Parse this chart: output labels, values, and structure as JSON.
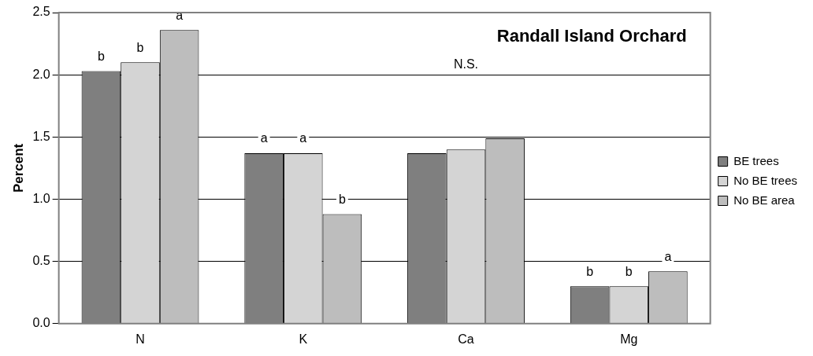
{
  "chart_data": {
    "type": "bar",
    "title": "Randall Island Orchard",
    "ylabel": "Percent",
    "categories": [
      "N",
      "K",
      "Ca",
      "Mg"
    ],
    "series": [
      {
        "name": "BE trees",
        "color": "#7f7f7f",
        "values": [
          2.03,
          1.37,
          1.37,
          0.3
        ],
        "value_labels": [
          "b",
          "a",
          null,
          "b"
        ]
      },
      {
        "name": "No BE trees",
        "color": "#d4d4d4",
        "values": [
          2.1,
          1.37,
          1.4,
          0.3
        ],
        "value_labels": [
          "b",
          "a",
          null,
          "b"
        ]
      },
      {
        "name": "No BE area",
        "color": "#bdbdbd",
        "values": [
          2.36,
          0.88,
          1.49,
          0.42
        ],
        "value_labels": [
          "a",
          "b",
          null,
          "a"
        ]
      }
    ],
    "annotations": [
      "N.S."
    ],
    "ylim": [
      0,
      2.5
    ],
    "yticks": [
      {
        "value": 0,
        "label": "0.0"
      },
      {
        "value": 0.5,
        "label": "0.5"
      },
      {
        "value": 1,
        "label": "1.0"
      },
      {
        "value": 1.5,
        "label": "1.5"
      },
      {
        "value": 2,
        "label": "2.0"
      },
      {
        "value": 2.5,
        "label": "2.5"
      }
    ],
    "grid": "y",
    "legend": "right"
  }
}
